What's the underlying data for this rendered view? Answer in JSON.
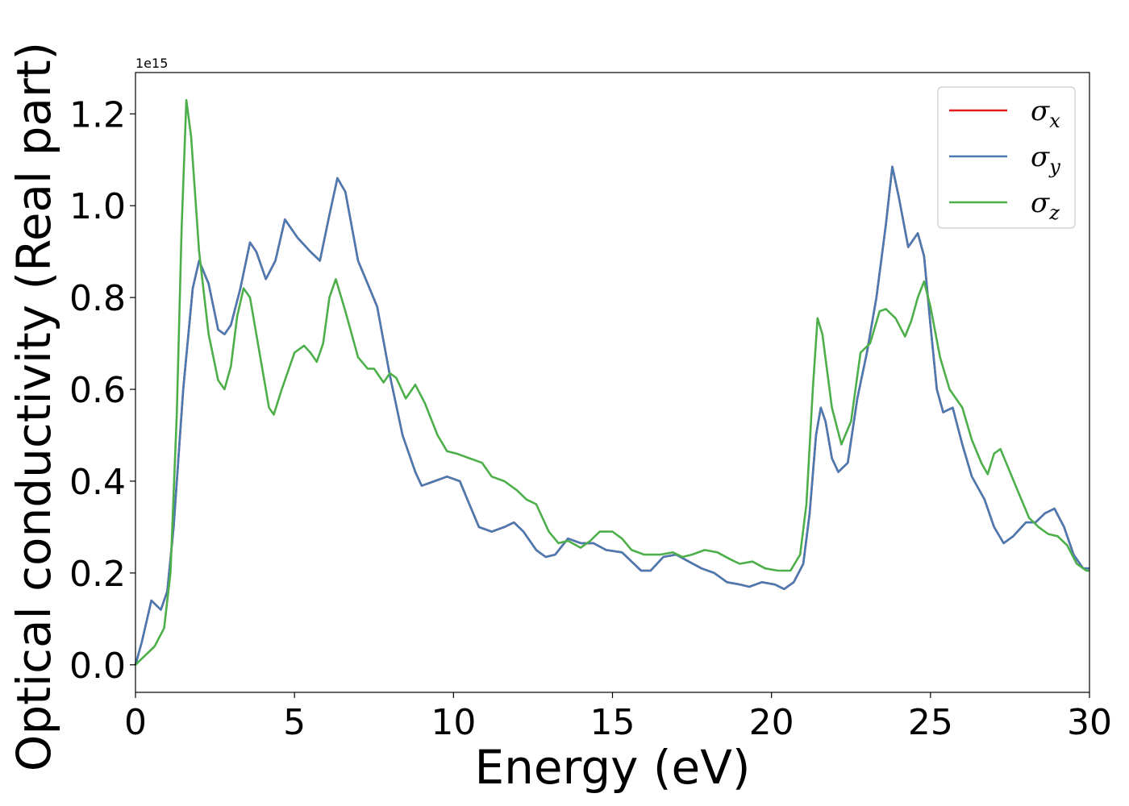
{
  "chart_data": {
    "type": "line",
    "title": "",
    "xlabel": "Energy (eV)",
    "ylabel": "Optical conductivity (Real part)",
    "y_offset_label": "1e15",
    "xlim": [
      0,
      30
    ],
    "ylim": [
      -0.06,
      1.29
    ],
    "xticks": [
      0,
      5,
      10,
      15,
      20,
      25,
      30
    ],
    "xtick_labels": [
      "0",
      "5",
      "10",
      "15",
      "20",
      "25",
      "30"
    ],
    "yticks": [
      0.0,
      0.2,
      0.4,
      0.6,
      0.8,
      1.0,
      1.2
    ],
    "ytick_labels": [
      "0.0",
      "0.2",
      "0.4",
      "0.6",
      "0.8",
      "1.0",
      "1.2"
    ],
    "grid": false,
    "legend_position": "top-right",
    "series": [
      {
        "name": "σx",
        "legend_symbol": "σ",
        "legend_subscript": "x",
        "color": "#e41a1c",
        "points": [
          [
            0,
            0
          ],
          [
            0.2,
            0.05
          ],
          [
            0.5,
            0.14
          ],
          [
            0.8,
            0.12
          ],
          [
            1.0,
            0.16
          ],
          [
            1.2,
            0.3
          ],
          [
            1.5,
            0.6
          ],
          [
            1.8,
            0.82
          ],
          [
            2.0,
            0.88
          ],
          [
            2.3,
            0.83
          ],
          [
            2.6,
            0.73
          ],
          [
            2.8,
            0.72
          ],
          [
            3.0,
            0.74
          ],
          [
            3.3,
            0.82
          ],
          [
            3.6,
            0.92
          ],
          [
            3.8,
            0.9
          ],
          [
            4.1,
            0.84
          ],
          [
            4.4,
            0.88
          ],
          [
            4.7,
            0.97
          ],
          [
            5.1,
            0.93
          ],
          [
            5.5,
            0.9
          ],
          [
            5.8,
            0.88
          ],
          [
            6.1,
            0.98
          ],
          [
            6.35,
            1.06
          ],
          [
            6.6,
            1.03
          ],
          [
            7.0,
            0.88
          ],
          [
            7.3,
            0.83
          ],
          [
            7.6,
            0.78
          ],
          [
            8.0,
            0.63
          ],
          [
            8.4,
            0.5
          ],
          [
            8.8,
            0.42
          ],
          [
            9.0,
            0.39
          ],
          [
            9.4,
            0.4
          ],
          [
            9.8,
            0.41
          ],
          [
            10.2,
            0.4
          ],
          [
            10.5,
            0.35
          ],
          [
            10.8,
            0.3
          ],
          [
            11.2,
            0.29
          ],
          [
            11.6,
            0.3
          ],
          [
            11.9,
            0.31
          ],
          [
            12.2,
            0.29
          ],
          [
            12.6,
            0.25
          ],
          [
            12.9,
            0.235
          ],
          [
            13.2,
            0.24
          ],
          [
            13.6,
            0.275
          ],
          [
            14.0,
            0.265
          ],
          [
            14.4,
            0.265
          ],
          [
            14.8,
            0.25
          ],
          [
            15.3,
            0.245
          ],
          [
            15.6,
            0.225
          ],
          [
            15.9,
            0.205
          ],
          [
            16.2,
            0.205
          ],
          [
            16.6,
            0.235
          ],
          [
            17.0,
            0.24
          ],
          [
            17.4,
            0.225
          ],
          [
            17.8,
            0.21
          ],
          [
            18.2,
            0.2
          ],
          [
            18.6,
            0.18
          ],
          [
            19.0,
            0.175
          ],
          [
            19.3,
            0.17
          ],
          [
            19.7,
            0.18
          ],
          [
            20.1,
            0.175
          ],
          [
            20.4,
            0.165
          ],
          [
            20.7,
            0.18
          ],
          [
            21.0,
            0.22
          ],
          [
            21.2,
            0.33
          ],
          [
            21.4,
            0.5
          ],
          [
            21.55,
            0.56
          ],
          [
            21.7,
            0.53
          ],
          [
            21.9,
            0.45
          ],
          [
            22.1,
            0.42
          ],
          [
            22.4,
            0.44
          ],
          [
            22.7,
            0.58
          ],
          [
            23.0,
            0.68
          ],
          [
            23.3,
            0.8
          ],
          [
            23.6,
            0.96
          ],
          [
            23.8,
            1.085
          ],
          [
            24.0,
            1.02
          ],
          [
            24.3,
            0.91
          ],
          [
            24.6,
            0.94
          ],
          [
            24.8,
            0.89
          ],
          [
            25.0,
            0.74
          ],
          [
            25.2,
            0.6
          ],
          [
            25.4,
            0.55
          ],
          [
            25.7,
            0.56
          ],
          [
            26.0,
            0.48
          ],
          [
            26.3,
            0.41
          ],
          [
            26.7,
            0.36
          ],
          [
            27.0,
            0.3
          ],
          [
            27.3,
            0.265
          ],
          [
            27.6,
            0.28
          ],
          [
            28.0,
            0.31
          ],
          [
            28.3,
            0.31
          ],
          [
            28.6,
            0.33
          ],
          [
            28.9,
            0.34
          ],
          [
            29.2,
            0.3
          ],
          [
            29.5,
            0.24
          ],
          [
            29.8,
            0.21
          ],
          [
            30,
            0.21
          ]
        ]
      },
      {
        "name": "σy",
        "legend_symbol": "σ",
        "legend_subscript": "y",
        "color": "#4a7ab2",
        "points": [
          [
            0,
            0
          ],
          [
            0.2,
            0.05
          ],
          [
            0.5,
            0.14
          ],
          [
            0.8,
            0.12
          ],
          [
            1.0,
            0.16
          ],
          [
            1.2,
            0.3
          ],
          [
            1.5,
            0.6
          ],
          [
            1.8,
            0.82
          ],
          [
            2.0,
            0.88
          ],
          [
            2.3,
            0.83
          ],
          [
            2.6,
            0.73
          ],
          [
            2.8,
            0.72
          ],
          [
            3.0,
            0.74
          ],
          [
            3.3,
            0.82
          ],
          [
            3.6,
            0.92
          ],
          [
            3.8,
            0.9
          ],
          [
            4.1,
            0.84
          ],
          [
            4.4,
            0.88
          ],
          [
            4.7,
            0.97
          ],
          [
            5.1,
            0.93
          ],
          [
            5.5,
            0.9
          ],
          [
            5.8,
            0.88
          ],
          [
            6.1,
            0.98
          ],
          [
            6.35,
            1.06
          ],
          [
            6.6,
            1.03
          ],
          [
            7.0,
            0.88
          ],
          [
            7.3,
            0.83
          ],
          [
            7.6,
            0.78
          ],
          [
            8.0,
            0.63
          ],
          [
            8.4,
            0.5
          ],
          [
            8.8,
            0.42
          ],
          [
            9.0,
            0.39
          ],
          [
            9.4,
            0.4
          ],
          [
            9.8,
            0.41
          ],
          [
            10.2,
            0.4
          ],
          [
            10.5,
            0.35
          ],
          [
            10.8,
            0.3
          ],
          [
            11.2,
            0.29
          ],
          [
            11.6,
            0.3
          ],
          [
            11.9,
            0.31
          ],
          [
            12.2,
            0.29
          ],
          [
            12.6,
            0.25
          ],
          [
            12.9,
            0.235
          ],
          [
            13.2,
            0.24
          ],
          [
            13.6,
            0.275
          ],
          [
            14.0,
            0.265
          ],
          [
            14.4,
            0.265
          ],
          [
            14.8,
            0.25
          ],
          [
            15.3,
            0.245
          ],
          [
            15.6,
            0.225
          ],
          [
            15.9,
            0.205
          ],
          [
            16.2,
            0.205
          ],
          [
            16.6,
            0.235
          ],
          [
            17.0,
            0.24
          ],
          [
            17.4,
            0.225
          ],
          [
            17.8,
            0.21
          ],
          [
            18.2,
            0.2
          ],
          [
            18.6,
            0.18
          ],
          [
            19.0,
            0.175
          ],
          [
            19.3,
            0.17
          ],
          [
            19.7,
            0.18
          ],
          [
            20.1,
            0.175
          ],
          [
            20.4,
            0.165
          ],
          [
            20.7,
            0.18
          ],
          [
            21.0,
            0.22
          ],
          [
            21.2,
            0.33
          ],
          [
            21.4,
            0.5
          ],
          [
            21.55,
            0.56
          ],
          [
            21.7,
            0.53
          ],
          [
            21.9,
            0.45
          ],
          [
            22.1,
            0.42
          ],
          [
            22.4,
            0.44
          ],
          [
            22.7,
            0.58
          ],
          [
            23.0,
            0.68
          ],
          [
            23.3,
            0.8
          ],
          [
            23.6,
            0.96
          ],
          [
            23.8,
            1.085
          ],
          [
            24.0,
            1.02
          ],
          [
            24.3,
            0.91
          ],
          [
            24.6,
            0.94
          ],
          [
            24.8,
            0.89
          ],
          [
            25.0,
            0.74
          ],
          [
            25.2,
            0.6
          ],
          [
            25.4,
            0.55
          ],
          [
            25.7,
            0.56
          ],
          [
            26.0,
            0.48
          ],
          [
            26.3,
            0.41
          ],
          [
            26.7,
            0.36
          ],
          [
            27.0,
            0.3
          ],
          [
            27.3,
            0.265
          ],
          [
            27.6,
            0.28
          ],
          [
            28.0,
            0.31
          ],
          [
            28.3,
            0.31
          ],
          [
            28.6,
            0.33
          ],
          [
            28.9,
            0.34
          ],
          [
            29.2,
            0.3
          ],
          [
            29.5,
            0.24
          ],
          [
            29.8,
            0.21
          ],
          [
            30,
            0.21
          ]
        ]
      },
      {
        "name": "σz",
        "legend_symbol": "σ",
        "legend_subscript": "z",
        "color": "#4daf4a",
        "points": [
          [
            0,
            0
          ],
          [
            0.3,
            0.02
          ],
          [
            0.6,
            0.04
          ],
          [
            0.9,
            0.08
          ],
          [
            1.1,
            0.2
          ],
          [
            1.3,
            0.55
          ],
          [
            1.45,
            0.95
          ],
          [
            1.6,
            1.23
          ],
          [
            1.75,
            1.15
          ],
          [
            2.0,
            0.9
          ],
          [
            2.3,
            0.72
          ],
          [
            2.6,
            0.62
          ],
          [
            2.8,
            0.6
          ],
          [
            3.0,
            0.65
          ],
          [
            3.2,
            0.76
          ],
          [
            3.4,
            0.82
          ],
          [
            3.6,
            0.8
          ],
          [
            3.9,
            0.68
          ],
          [
            4.2,
            0.56
          ],
          [
            4.35,
            0.545
          ],
          [
            4.6,
            0.6
          ],
          [
            5.0,
            0.68
          ],
          [
            5.3,
            0.695
          ],
          [
            5.5,
            0.68
          ],
          [
            5.7,
            0.66
          ],
          [
            5.9,
            0.7
          ],
          [
            6.1,
            0.8
          ],
          [
            6.3,
            0.84
          ],
          [
            6.6,
            0.77
          ],
          [
            7.0,
            0.67
          ],
          [
            7.3,
            0.645
          ],
          [
            7.5,
            0.645
          ],
          [
            7.8,
            0.615
          ],
          [
            8.0,
            0.635
          ],
          [
            8.2,
            0.625
          ],
          [
            8.5,
            0.58
          ],
          [
            8.8,
            0.61
          ],
          [
            9.1,
            0.57
          ],
          [
            9.5,
            0.5
          ],
          [
            9.8,
            0.465
          ],
          [
            10.1,
            0.46
          ],
          [
            10.5,
            0.45
          ],
          [
            10.9,
            0.44
          ],
          [
            11.2,
            0.41
          ],
          [
            11.6,
            0.4
          ],
          [
            12.0,
            0.38
          ],
          [
            12.3,
            0.36
          ],
          [
            12.6,
            0.35
          ],
          [
            13.0,
            0.29
          ],
          [
            13.3,
            0.265
          ],
          [
            13.6,
            0.27
          ],
          [
            14.0,
            0.255
          ],
          [
            14.3,
            0.27
          ],
          [
            14.6,
            0.29
          ],
          [
            15.0,
            0.29
          ],
          [
            15.3,
            0.275
          ],
          [
            15.6,
            0.25
          ],
          [
            16.0,
            0.24
          ],
          [
            16.5,
            0.24
          ],
          [
            16.9,
            0.245
          ],
          [
            17.2,
            0.235
          ],
          [
            17.5,
            0.24
          ],
          [
            17.9,
            0.25
          ],
          [
            18.3,
            0.245
          ],
          [
            18.7,
            0.23
          ],
          [
            19.0,
            0.22
          ],
          [
            19.4,
            0.225
          ],
          [
            19.8,
            0.21
          ],
          [
            20.2,
            0.205
          ],
          [
            20.6,
            0.205
          ],
          [
            20.9,
            0.24
          ],
          [
            21.1,
            0.35
          ],
          [
            21.3,
            0.6
          ],
          [
            21.45,
            0.755
          ],
          [
            21.6,
            0.72
          ],
          [
            21.9,
            0.56
          ],
          [
            22.2,
            0.48
          ],
          [
            22.5,
            0.53
          ],
          [
            22.8,
            0.68
          ],
          [
            23.1,
            0.7
          ],
          [
            23.4,
            0.77
          ],
          [
            23.6,
            0.775
          ],
          [
            23.9,
            0.755
          ],
          [
            24.2,
            0.715
          ],
          [
            24.4,
            0.75
          ],
          [
            24.6,
            0.8
          ],
          [
            24.8,
            0.835
          ],
          [
            25.0,
            0.78
          ],
          [
            25.3,
            0.67
          ],
          [
            25.6,
            0.6
          ],
          [
            26.0,
            0.56
          ],
          [
            26.3,
            0.49
          ],
          [
            26.6,
            0.44
          ],
          [
            26.8,
            0.415
          ],
          [
            27.0,
            0.46
          ],
          [
            27.2,
            0.47
          ],
          [
            27.5,
            0.42
          ],
          [
            27.8,
            0.37
          ],
          [
            28.1,
            0.32
          ],
          [
            28.4,
            0.3
          ],
          [
            28.7,
            0.285
          ],
          [
            29.0,
            0.28
          ],
          [
            29.3,
            0.26
          ],
          [
            29.6,
            0.22
          ],
          [
            29.9,
            0.205
          ],
          [
            30,
            0.205
          ]
        ]
      }
    ]
  }
}
